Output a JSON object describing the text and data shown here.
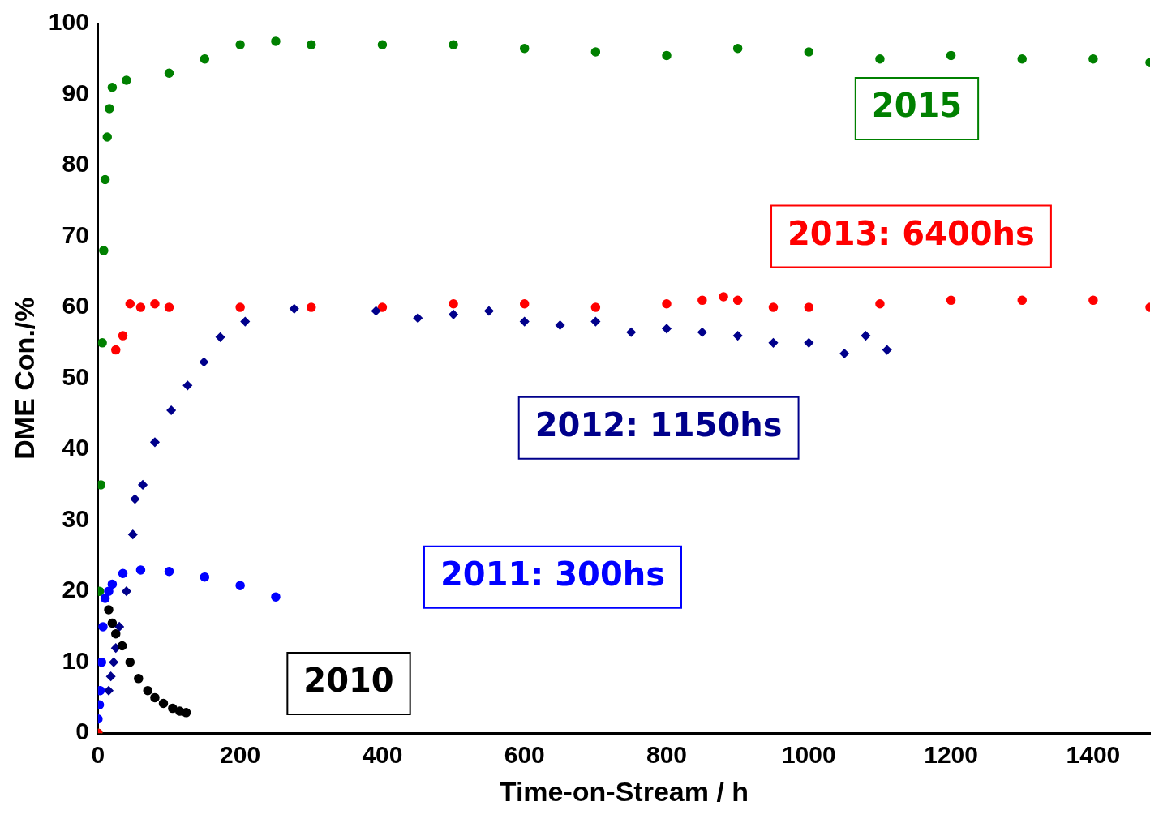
{
  "chart_data": {
    "type": "scatter",
    "xlabel": "Time-on-Stream / h",
    "ylabel": "DME Con./%",
    "xlim": [
      0,
      1480
    ],
    "ylim": [
      0,
      100
    ],
    "xticks": [
      0,
      200,
      400,
      600,
      800,
      1000,
      1200,
      1400
    ],
    "yticks": [
      0,
      10,
      20,
      30,
      40,
      50,
      60,
      70,
      80,
      90,
      100
    ],
    "grid": false,
    "legend": false,
    "series": [
      {
        "name": "2010",
        "color": "#000000",
        "marker": "circle",
        "x": [
          15,
          20,
          25,
          34,
          45,
          57,
          70,
          80,
          92,
          105,
          115,
          124
        ],
        "values": [
          17.4,
          15.5,
          14,
          12.3,
          10,
          7.7,
          6,
          5,
          4.2,
          3.5,
          3.1,
          2.9
        ]
      },
      {
        "name": "2011: 300hs",
        "color": "#0000ff",
        "marker": "circle",
        "x": [
          0,
          2,
          3,
          5,
          7,
          10,
          15,
          20,
          35,
          60,
          100,
          150,
          200,
          250
        ],
        "values": [
          2,
          4,
          6,
          10,
          15,
          19,
          20,
          21,
          22.5,
          23,
          22.8,
          22,
          20.8,
          19.2
        ]
      },
      {
        "name": "2012: 1150hs",
        "color": "#00008b",
        "marker": "diamond",
        "x": [
          15,
          18,
          22,
          25,
          30,
          40,
          49,
          52,
          63,
          80,
          103,
          126,
          149,
          172,
          207,
          276,
          391,
          450,
          500,
          550,
          600,
          650,
          700,
          750,
          800,
          850,
          900,
          950,
          1000,
          1050,
          1080,
          1110
        ],
        "values": [
          6,
          8,
          10,
          12,
          15,
          20,
          28,
          33,
          35,
          41,
          45.5,
          49,
          52.3,
          55.8,
          58,
          59.8,
          59.5,
          58.5,
          59,
          59.5,
          58,
          57.5,
          58,
          56.5,
          57,
          56.5,
          56,
          55,
          55,
          53.5,
          56,
          54
        ]
      },
      {
        "name": "2013: 6400hs",
        "color": "#ff0000",
        "marker": "circle",
        "x": [
          0,
          25,
          35,
          45,
          60,
          80,
          100,
          200,
          300,
          400,
          500,
          600,
          700,
          800,
          850,
          880,
          900,
          950,
          1000,
          1100,
          1200,
          1300,
          1400,
          1480
        ],
        "values": [
          0,
          54,
          56,
          60.5,
          60,
          60.5,
          60,
          60,
          60,
          60,
          60.5,
          60.5,
          60,
          60.5,
          61,
          61.5,
          61,
          60,
          60,
          60.5,
          61,
          61,
          61,
          60
        ]
      },
      {
        "name": "2015",
        "color": "#008000",
        "marker": "circle",
        "x": [
          0,
          2,
          4,
          6,
          8,
          10,
          13,
          16,
          20,
          40,
          100,
          150,
          200,
          250,
          300,
          400,
          500,
          600,
          700,
          800,
          900,
          1000,
          1100,
          1200,
          1300,
          1400,
          1480
        ],
        "values": [
          0,
          20,
          35,
          55,
          68,
          78,
          84,
          88,
          91,
          92,
          93,
          95,
          97,
          97.5,
          97,
          97,
          97,
          96.5,
          96,
          95.5,
          96.5,
          96,
          95,
          95.5,
          95,
          95,
          94.5
        ]
      }
    ]
  }
}
